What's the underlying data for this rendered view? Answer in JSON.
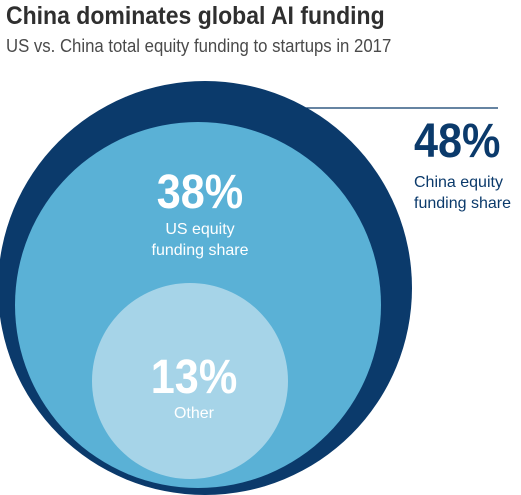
{
  "title": "China dominates global AI funding",
  "subtitle": "US vs. China total equity funding to startups in 2017",
  "chart_data": {
    "type": "nested-circle",
    "title": "China dominates global AI funding",
    "subtitle": "US vs. China total equity funding to startups in 2017",
    "unit": "%",
    "segments": [
      {
        "name": "China equity funding share",
        "value_label": "48%",
        "value": 48,
        "color": "#0b3a6b"
      },
      {
        "name": "US equity funding share",
        "value_label": "38%",
        "value": 38,
        "color": "#5ab1d6"
      },
      {
        "name": "Other",
        "value_label": "13%",
        "value": 13,
        "color": "#a6d4e8"
      }
    ]
  },
  "labels": {
    "china_pct": "48%",
    "china_line1": "China equity",
    "china_line2": "funding share",
    "us_pct": "38%",
    "us_line1": "US equity",
    "us_line2": "funding share",
    "other_pct": "13%",
    "other_label": "Other"
  }
}
